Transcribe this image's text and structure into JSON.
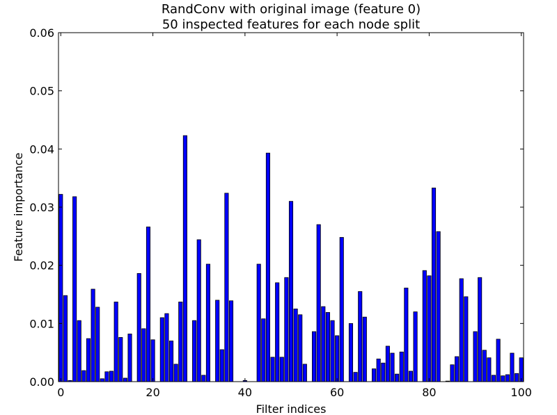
{
  "chart_data": {
    "type": "bar",
    "title": [
      "RandConv with original image (feature 0)",
      "50 inspected features for each node split"
    ],
    "xlabel": "Filter indices",
    "ylabel": "Feature importance",
    "xlim": [
      -0.5,
      100.5
    ],
    "ylim": [
      0,
      0.06
    ],
    "xticks": [
      0,
      20,
      40,
      60,
      80,
      100
    ],
    "yticks": [
      0.0,
      0.01,
      0.02,
      0.03,
      0.04,
      0.05,
      0.06
    ],
    "ytick_labels": [
      "0.00",
      "0.01",
      "0.02",
      "0.03",
      "0.04",
      "0.05",
      "0.06"
    ],
    "grid": false,
    "bar_color": "#0000ff",
    "bar_edge_color": "#000000",
    "x": [
      0,
      1,
      2,
      3,
      4,
      5,
      6,
      7,
      8,
      9,
      10,
      11,
      12,
      13,
      14,
      15,
      16,
      17,
      18,
      19,
      20,
      21,
      22,
      23,
      24,
      25,
      26,
      27,
      28,
      29,
      30,
      31,
      32,
      33,
      34,
      35,
      36,
      37,
      38,
      39,
      40,
      41,
      42,
      43,
      44,
      45,
      46,
      47,
      48,
      49,
      50,
      51,
      52,
      53,
      54,
      55,
      56,
      57,
      58,
      59,
      60,
      61,
      62,
      63,
      64,
      65,
      66,
      67,
      68,
      69,
      70,
      71,
      72,
      73,
      74,
      75,
      76,
      77,
      78,
      79,
      80,
      81,
      82,
      83,
      84,
      85,
      86,
      87,
      88,
      89,
      90,
      91,
      92,
      93,
      94,
      95,
      96,
      97,
      98,
      99,
      100
    ],
    "values": [
      0.0322,
      0.0148,
      0.0002,
      0.0318,
      0.0105,
      0.0019,
      0.0074,
      0.0159,
      0.0128,
      0.0005,
      0.0017,
      0.0018,
      0.0137,
      0.0076,
      0.0006,
      0.0082,
      0.0,
      0.0186,
      0.0091,
      0.0266,
      0.0072,
      0.0,
      0.011,
      0.0117,
      0.007,
      0.003,
      0.0137,
      0.0423,
      0.0,
      0.0105,
      0.0244,
      0.0011,
      0.0202,
      0.0,
      0.014,
      0.0055,
      0.0324,
      0.0139,
      0.0,
      0.0,
      0.0002,
      0.0,
      0.0,
      0.0202,
      0.0108,
      0.0393,
      0.0042,
      0.017,
      0.0042,
      0.0179,
      0.031,
      0.0125,
      0.0115,
      0.003,
      0.0,
      0.0086,
      0.027,
      0.0129,
      0.0119,
      0.0105,
      0.0079,
      0.0248,
      0.0,
      0.01,
      0.0016,
      0.0155,
      0.0111,
      0.0,
      0.0022,
      0.0039,
      0.0032,
      0.0061,
      0.0049,
      0.0013,
      0.0051,
      0.0161,
      0.0018,
      0.012,
      0.0,
      0.0191,
      0.0182,
      0.0333,
      0.0258,
      0.0,
      0.0001,
      0.0029,
      0.0043,
      0.0177,
      0.0146,
      0.0,
      0.0086,
      0.0179,
      0.0054,
      0.0041,
      0.0011,
      0.0073,
      0.001,
      0.0012,
      0.0049,
      0.0014,
      0.0041
    ]
  }
}
